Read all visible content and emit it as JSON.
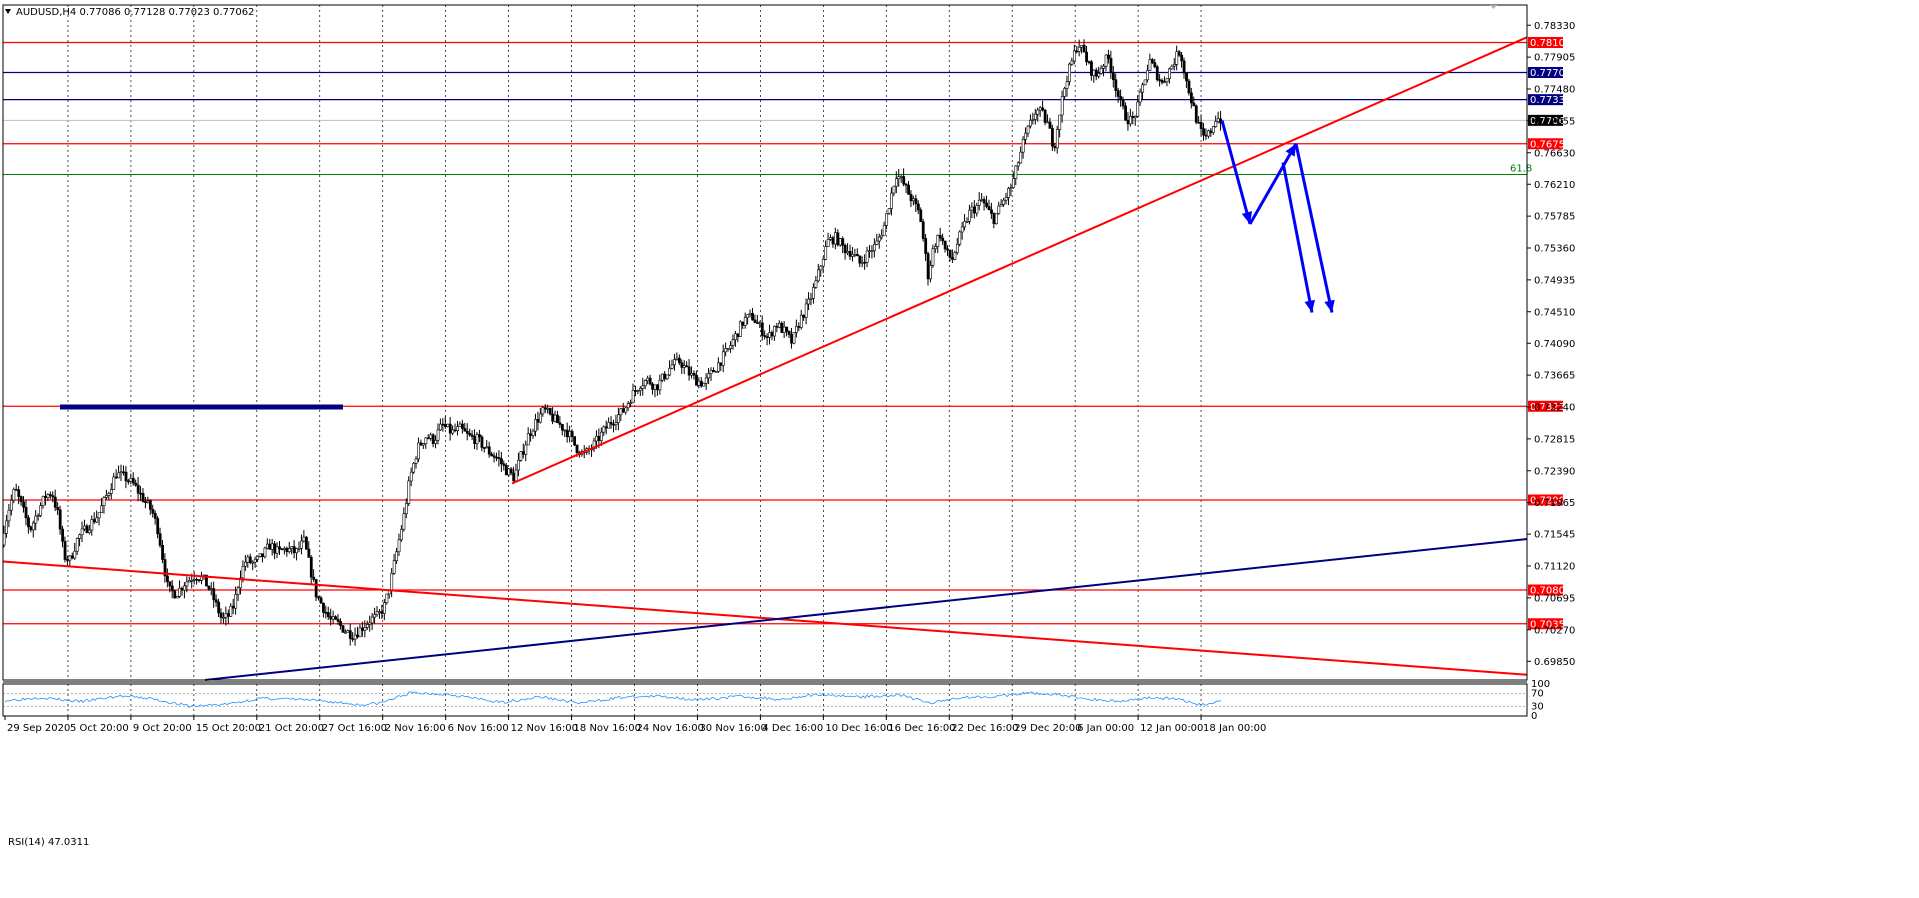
{
  "chart_data": {
    "type": "candlestick",
    "title": "AUDUSD,H4  0.77086 0.77128 0.77023 0.77062",
    "price_axis": {
      "ylim": [
        0.696,
        0.786
      ],
      "ticks": [
        "0.78330",
        "0.77905",
        "0.77480",
        "0.77055",
        "0.76630",
        "0.76210",
        "0.75785",
        "0.75360",
        "0.74935",
        "0.74510",
        "0.74090",
        "0.73665",
        "0.73240",
        "0.72815",
        "0.72390",
        "0.71965",
        "0.71545",
        "0.71120",
        "0.70695",
        "0.70270",
        "0.69850"
      ]
    },
    "time_axis": {
      "labels": [
        "29 Sep 2020",
        "5 Oct 20:00",
        "9 Oct 20:00",
        "15 Oct 20:00",
        "21 Oct 20:00",
        "27 Oct 16:00",
        "2 Nov 16:00",
        "6 Nov 16:00",
        "12 Nov 16:00",
        "18 Nov 16:00",
        "24 Nov 16:00",
        "30 Nov 16:00",
        "4 Dec 16:00",
        "10 Dec 16:00",
        "16 Dec 16:00",
        "22 Dec 16:00",
        "29 Dec 20:00",
        "6 Jan 00:00",
        "12 Jan 00:00",
        "18 Jan 00:00"
      ],
      "bar_count": 500
    },
    "price_path": [
      [
        0,
        0.714
      ],
      [
        8,
        0.7185
      ],
      [
        15,
        0.7215
      ],
      [
        22,
        0.719
      ],
      [
        30,
        0.716
      ],
      [
        38,
        0.7185
      ],
      [
        45,
        0.7205
      ],
      [
        52,
        0.721
      ],
      [
        58,
        0.718
      ],
      [
        64,
        0.7125
      ],
      [
        70,
        0.712
      ],
      [
        78,
        0.715
      ],
      [
        88,
        0.7165
      ],
      [
        98,
        0.718
      ],
      [
        108,
        0.721
      ],
      [
        116,
        0.7235
      ],
      [
        125,
        0.723
      ],
      [
        134,
        0.722
      ],
      [
        144,
        0.72
      ],
      [
        152,
        0.7185
      ],
      [
        158,
        0.716
      ],
      [
        163,
        0.712
      ],
      [
        168,
        0.708
      ],
      [
        176,
        0.7075
      ],
      [
        185,
        0.709
      ],
      [
        195,
        0.71
      ],
      [
        203,
        0.7095
      ],
      [
        210,
        0.708
      ],
      [
        216,
        0.706
      ],
      [
        222,
        0.704
      ],
      [
        228,
        0.7045
      ],
      [
        234,
        0.706
      ],
      [
        240,
        0.71
      ],
      [
        246,
        0.712
      ],
      [
        254,
        0.7115
      ],
      [
        262,
        0.7125
      ],
      [
        270,
        0.714
      ],
      [
        278,
        0.713
      ],
      [
        286,
        0.7135
      ],
      [
        296,
        0.713
      ],
      [
        304,
        0.7145
      ],
      [
        310,
        0.711
      ],
      [
        316,
        0.7075
      ],
      [
        322,
        0.706
      ],
      [
        330,
        0.704
      ],
      [
        338,
        0.7035
      ],
      [
        346,
        0.7025
      ],
      [
        354,
        0.702
      ],
      [
        362,
        0.703
      ],
      [
        370,
        0.704
      ],
      [
        378,
        0.7045
      ],
      [
        385,
        0.706
      ],
      [
        392,
        0.71
      ],
      [
        398,
        0.714
      ],
      [
        404,
        0.718
      ],
      [
        410,
        0.723
      ],
      [
        418,
        0.727
      ],
      [
        426,
        0.7285
      ],
      [
        434,
        0.728
      ],
      [
        442,
        0.73
      ],
      [
        452,
        0.729
      ],
      [
        460,
        0.7295
      ],
      [
        468,
        0.7285
      ],
      [
        478,
        0.728
      ],
      [
        488,
        0.7265
      ],
      [
        498,
        0.7255
      ],
      [
        506,
        0.724
      ],
      [
        514,
        0.723
      ],
      [
        520,
        0.7255
      ],
      [
        528,
        0.7285
      ],
      [
        536,
        0.7305
      ],
      [
        544,
        0.732
      ],
      [
        552,
        0.731
      ],
      [
        560,
        0.73
      ],
      [
        568,
        0.729
      ],
      [
        576,
        0.727
      ],
      [
        584,
        0.726
      ],
      [
        592,
        0.727
      ],
      [
        600,
        0.7285
      ],
      [
        608,
        0.73
      ],
      [
        616,
        0.731
      ],
      [
        624,
        0.732
      ],
      [
        632,
        0.734
      ],
      [
        640,
        0.7355
      ],
      [
        648,
        0.736
      ],
      [
        656,
        0.735
      ],
      [
        664,
        0.7365
      ],
      [
        672,
        0.738
      ],
      [
        680,
        0.7385
      ],
      [
        688,
        0.737
      ],
      [
        696,
        0.736
      ],
      [
        704,
        0.7355
      ],
      [
        712,
        0.737
      ],
      [
        720,
        0.7385
      ],
      [
        728,
        0.74
      ],
      [
        736,
        0.742
      ],
      [
        744,
        0.744
      ],
      [
        752,
        0.7445
      ],
      [
        760,
        0.743
      ],
      [
        768,
        0.7415
      ],
      [
        776,
        0.7435
      ],
      [
        784,
        0.7425
      ],
      [
        792,
        0.741
      ],
      [
        800,
        0.744
      ],
      [
        808,
        0.746
      ],
      [
        816,
        0.749
      ],
      [
        822,
        0.752
      ],
      [
        828,
        0.7545
      ],
      [
        836,
        0.755
      ],
      [
        844,
        0.7535
      ],
      [
        852,
        0.753
      ],
      [
        860,
        0.7515
      ],
      [
        868,
        0.753
      ],
      [
        876,
        0.754
      ],
      [
        884,
        0.7565
      ],
      [
        890,
        0.76
      ],
      [
        896,
        0.7635
      ],
      [
        902,
        0.7625
      ],
      [
        908,
        0.761
      ],
      [
        914,
        0.7595
      ],
      [
        920,
        0.758
      ],
      [
        924,
        0.754
      ],
      [
        928,
        0.75
      ],
      [
        934,
        0.754
      ],
      [
        940,
        0.7555
      ],
      [
        946,
        0.753
      ],
      [
        952,
        0.752
      ],
      [
        958,
        0.7545
      ],
      [
        964,
        0.7565
      ],
      [
        970,
        0.7585
      ],
      [
        976,
        0.759
      ],
      [
        982,
        0.76
      ],
      [
        988,
        0.7585
      ],
      [
        994,
        0.7575
      ],
      [
        1000,
        0.759
      ],
      [
        1006,
        0.7605
      ],
      [
        1012,
        0.762
      ],
      [
        1018,
        0.765
      ],
      [
        1024,
        0.768
      ],
      [
        1030,
        0.77
      ],
      [
        1036,
        0.772
      ],
      [
        1042,
        0.7715
      ],
      [
        1048,
        0.77
      ],
      [
        1054,
        0.767
      ],
      [
        1060,
        0.772
      ],
      [
        1066,
        0.776
      ],
      [
        1072,
        0.7785
      ],
      [
        1078,
        0.781
      ],
      [
        1084,
        0.7795
      ],
      [
        1090,
        0.7775
      ],
      [
        1096,
        0.7765
      ],
      [
        1102,
        0.778
      ],
      [
        1108,
        0.779
      ],
      [
        1114,
        0.776
      ],
      [
        1120,
        0.773
      ],
      [
        1126,
        0.771
      ],
      [
        1132,
        0.7705
      ],
      [
        1138,
        0.7725
      ],
      [
        1144,
        0.776
      ],
      [
        1150,
        0.7785
      ],
      [
        1156,
        0.777
      ],
      [
        1162,
        0.7755
      ],
      [
        1168,
        0.777
      ],
      [
        1174,
        0.7785
      ],
      [
        1180,
        0.78
      ],
      [
        1186,
        0.776
      ],
      [
        1192,
        0.773
      ],
      [
        1198,
        0.77
      ],
      [
        1204,
        0.768
      ],
      [
        1210,
        0.769
      ],
      [
        1216,
        0.771
      ],
      [
        1222,
        0.7706
      ]
    ],
    "horizontal_levels": [
      {
        "value": 0.781,
        "label": "0.78100",
        "color": "#ff0000"
      },
      {
        "value": 0.777,
        "label": "0.77700",
        "color": "#000080"
      },
      {
        "value": 0.77338,
        "label": "0.77338",
        "color": "#000080"
      },
      {
        "value": 0.77062,
        "label": "0.77062",
        "color": "#000000",
        "current": true
      },
      {
        "value": 0.7675,
        "label": "0.76750",
        "color": "#ff0000"
      },
      {
        "value": 0.7325,
        "label": "0.73250",
        "color": "#ff0000"
      },
      {
        "value": 0.72,
        "label": "0.72000",
        "color": "#ff0000"
      },
      {
        "value": 0.708,
        "label": "0.70800",
        "color": "#ff0000"
      },
      {
        "value": 0.7035,
        "label": "0.70350",
        "color": "#ff0000"
      }
    ],
    "fib_level": {
      "value": 0.7634,
      "label": "61.8",
      "color": "#008000"
    },
    "trendlines": [
      {
        "name": "red rising trendline",
        "color": "#ff0000",
        "from": [
          512,
          0.7222
        ],
        "to": [
          1527,
          0.7817
        ]
      },
      {
        "name": "red falling trendline",
        "color": "#ff0000",
        "from": [
          3,
          0.7118
        ],
        "to": [
          1527,
          0.6967
        ]
      },
      {
        "name": "navy rising trendline",
        "color": "#000080",
        "from": [
          205,
          0.696
        ],
        "to": [
          1527,
          0.7148
        ]
      },
      {
        "name": "navy horizontal segment",
        "color": "#000080",
        "from": [
          60,
          0.7324
        ],
        "to": [
          343,
          0.7324
        ]
      }
    ],
    "projection_arrows": [
      {
        "color": "#0000ff",
        "points": [
          [
            1222,
            0.7706
          ],
          [
            1250,
            0.7568
          ]
        ]
      },
      {
        "color": "#0000ff",
        "points": [
          [
            1250,
            0.7568
          ],
          [
            1296,
            0.7675
          ]
        ]
      },
      {
        "color": "#0000ff",
        "points": [
          [
            1283,
            0.765
          ],
          [
            1312,
            0.745
          ]
        ]
      },
      {
        "color": "#0000ff",
        "points": [
          [
            1296,
            0.7675
          ],
          [
            1332,
            0.745
          ]
        ]
      }
    ],
    "rsi": {
      "title": "RSI(14) 47.0311",
      "period": 14,
      "current": 47.0311,
      "levels": [
        "70",
        "30"
      ],
      "scale_labels": [
        "100",
        "70",
        "30",
        "0"
      ],
      "path": [
        [
          5,
          48
        ],
        [
          40,
          58
        ],
        [
          80,
          45
        ],
        [
          120,
          62
        ],
        [
          150,
          55
        ],
        [
          190,
          30
        ],
        [
          230,
          38
        ],
        [
          260,
          55
        ],
        [
          300,
          52
        ],
        [
          340,
          42
        ],
        [
          360,
          35
        ],
        [
          380,
          40
        ],
        [
          410,
          72
        ],
        [
          450,
          68
        ],
        [
          500,
          42
        ],
        [
          540,
          60
        ],
        [
          580,
          40
        ],
        [
          620,
          58
        ],
        [
          660,
          62
        ],
        [
          700,
          50
        ],
        [
          740,
          62
        ],
        [
          780,
          52
        ],
        [
          820,
          68
        ],
        [
          860,
          60
        ],
        [
          900,
          66
        ],
        [
          930,
          40
        ],
        [
          960,
          58
        ],
        [
          1000,
          62
        ],
        [
          1030,
          72
        ],
        [
          1060,
          66
        ],
        [
          1090,
          52
        ],
        [
          1120,
          46
        ],
        [
          1150,
          58
        ],
        [
          1180,
          52
        ],
        [
          1200,
          34
        ],
        [
          1222,
          47
        ]
      ]
    },
    "colors": {
      "grid": "#000000",
      "candle": "#000000",
      "support": "#ff0000",
      "resistance": "#000080",
      "projection": "#0000ff"
    },
    "grid": "vertical dotted"
  }
}
